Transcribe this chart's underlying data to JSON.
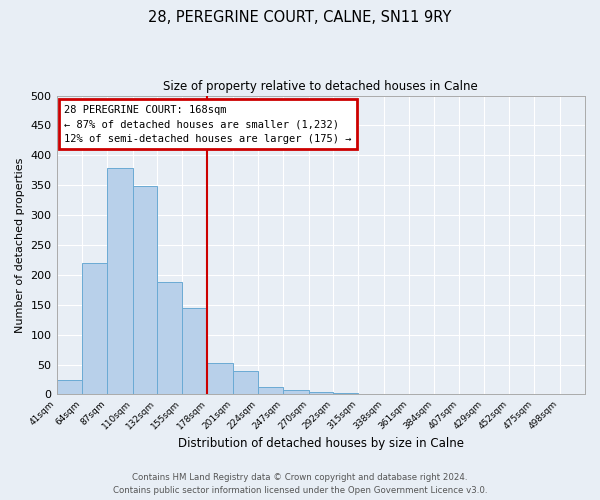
{
  "title": "28, PEREGRINE COURT, CALNE, SN11 9RY",
  "subtitle": "Size of property relative to detached houses in Calne",
  "xlabel": "Distribution of detached houses by size in Calne",
  "ylabel": "Number of detached properties",
  "bar_values": [
    25,
    220,
    378,
    348,
    188,
    145,
    53,
    40,
    12,
    7,
    4,
    2,
    1,
    0,
    1,
    0,
    1,
    0,
    0,
    0
  ],
  "bar_labels": [
    "41sqm",
    "64sqm",
    "87sqm",
    "110sqm",
    "132sqm",
    "155sqm",
    "178sqm",
    "201sqm",
    "224sqm",
    "247sqm",
    "270sqm",
    "292sqm",
    "315sqm",
    "338sqm",
    "361sqm",
    "384sqm",
    "407sqm",
    "429sqm",
    "452sqm",
    "475sqm",
    "498sqm"
  ],
  "bar_color": "#b8d0ea",
  "bar_edge_color": "#6aaad4",
  "background_color": "#e8eef5",
  "grid_color": "#ffffff",
  "vline_color": "#cc0000",
  "annotation_title": "28 PEREGRINE COURT: 168sqm",
  "annotation_line1": "← 87% of detached houses are smaller (1,232)",
  "annotation_line2": "12% of semi-detached houses are larger (175) →",
  "annotation_box_color": "#cc0000",
  "ylim": [
    0,
    500
  ],
  "yticks": [
    0,
    50,
    100,
    150,
    200,
    250,
    300,
    350,
    400,
    450,
    500
  ],
  "bin_edges": [
    41,
    64,
    87,
    110,
    132,
    155,
    178,
    201,
    224,
    247,
    270,
    292,
    315,
    338,
    361,
    384,
    407,
    429,
    452,
    475,
    498
  ],
  "footer_line1": "Contains HM Land Registry data © Crown copyright and database right 2024.",
  "footer_line2": "Contains public sector information licensed under the Open Government Licence v3.0."
}
